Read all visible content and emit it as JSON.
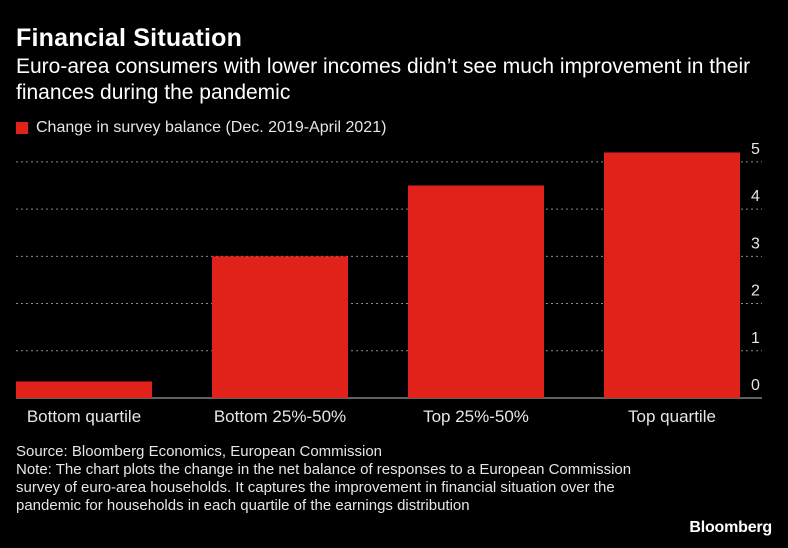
{
  "header": {
    "title": "Financial Situation",
    "subtitle": "Euro-area consumers with lower incomes didn’t see much improvement in their finances during the pandemic"
  },
  "colors": {
    "background": "#000000",
    "bar": "#e0221b",
    "text": "#ffffff",
    "gridline": "#8a8a8a"
  },
  "chart_data": {
    "type": "bar",
    "categories": [
      "Bottom quartile",
      "Bottom 25%-50%",
      "Top 25%-50%",
      "Top quartile"
    ],
    "series": [
      {
        "name": "Change in survey balance (Dec. 2019-April 2021)",
        "values": [
          0.35,
          3.0,
          4.5,
          5.2
        ]
      }
    ],
    "yticks": [
      "0",
      "1",
      "2",
      "3",
      "4",
      "5"
    ],
    "ylim": [
      0,
      5.4
    ],
    "y_axis_side": "right",
    "grid": true,
    "legend_position": "top-left"
  },
  "footer": {
    "source": "Source: Bloomberg Economics, European Commission",
    "note": "Note: The chart plots the change in the net balance of responses to a European Commission survey of euro-area households. It captures the improvement in financial situation over the pandemic for households in each quartile of the earnings distribution"
  },
  "brand": "Bloomberg"
}
